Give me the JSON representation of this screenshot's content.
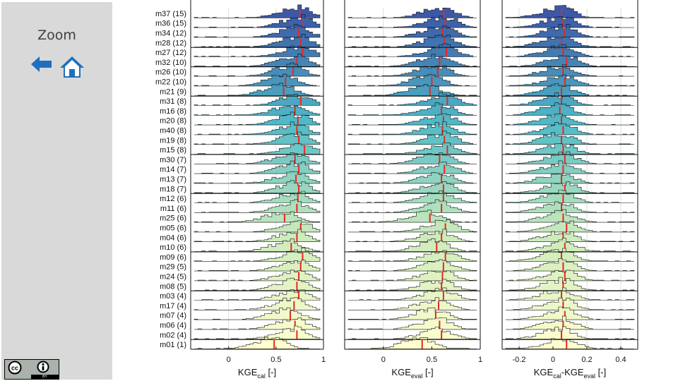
{
  "sidebar": {
    "title": "Zoom",
    "back_icon": "arrow-left-icon",
    "home_icon": "home-icon",
    "license_icon": "cc-by-license-icon",
    "license_strip": "BY",
    "accent": "#1f6fbf"
  },
  "chart_data": {
    "type": "histogram-ridgeline",
    "models": [
      "m37 (15)",
      "m36 (15)",
      "m34 (12)",
      "m28 (12)",
      "m27 (12)",
      "m32 (10)",
      "m26 (10)",
      "m22 (10)",
      "m21 (9)",
      "m31 (8)",
      "m16 (8)",
      "m20 (8)",
      "m40 (8)",
      "m19 (8)",
      "m15 (8)",
      "m30 (7)",
      "m14 (7)",
      "m13 (7)",
      "m18 (7)",
      "m12 (6)",
      "m11 (6)",
      "m25 (6)",
      "m05 (6)",
      "m04 (6)",
      "m10 (6)",
      "m09 (6)",
      "m29 (5)",
      "m24 (5)",
      "m08 (5)",
      "m03 (4)",
      "m17 (4)",
      "m07 (4)",
      "m06 (4)",
      "m02 (4)",
      "m01 (1)"
    ],
    "group_separators_after": [
      "m28 (12)",
      "m32 (10)",
      "m21 (9)",
      "m15 (8)",
      "m18 (7)",
      "m10 (6)",
      "m08 (5)",
      "m02 (4)"
    ],
    "colors": {
      "top": "#2b4aa0",
      "mid": "#41b6c4",
      "low": "#c7e9b4",
      "bottom": "#ffffcc",
      "median": "#e8281e"
    },
    "panels": [
      {
        "xlabel_main": "KGE",
        "xlabel_sub": "cal",
        "xlabel_unit": " [-]",
        "xlim": [
          -0.4,
          1.0
        ],
        "ticks": [
          0,
          0.5,
          1
        ],
        "tick_labels": [
          "0",
          "0.5",
          "1"
        ],
        "median": [
          0.75,
          0.77,
          0.74,
          0.76,
          0.78,
          0.72,
          0.68,
          0.6,
          0.58,
          0.76,
          0.7,
          0.73,
          0.72,
          0.74,
          0.8,
          0.7,
          0.74,
          0.71,
          0.74,
          0.73,
          0.72,
          0.59,
          0.76,
          0.72,
          0.66,
          0.78,
          0.76,
          0.74,
          0.72,
          0.74,
          0.69,
          0.65,
          0.7,
          0.72,
          0.48
        ]
      },
      {
        "xlabel_main": "KGE",
        "xlabel_sub": "eval",
        "xlabel_unit": " [-]",
        "xlim": [
          -0.4,
          1.0
        ],
        "ticks": [
          0,
          0.5,
          1
        ],
        "tick_labels": [
          "0",
          "0.5",
          "1"
        ],
        "median": [
          0.62,
          0.64,
          0.61,
          0.63,
          0.65,
          0.58,
          0.56,
          0.5,
          0.48,
          0.66,
          0.6,
          0.62,
          0.61,
          0.63,
          0.66,
          0.58,
          0.63,
          0.6,
          0.62,
          0.62,
          0.6,
          0.48,
          0.64,
          0.6,
          0.55,
          0.64,
          0.62,
          0.61,
          0.6,
          0.62,
          0.57,
          0.54,
          0.58,
          0.6,
          0.4
        ]
      },
      {
        "xlabel_main": "KGE",
        "xlabel_sub": "cal",
        "xlabel_mid": "-KGE",
        "xlabel_sub2": "eval",
        "xlabel_unit": " [-]",
        "xlim": [
          -0.3,
          0.5
        ],
        "ticks": [
          -0.2,
          0,
          0.2,
          0.4
        ],
        "tick_labels": [
          "-0.2",
          "0",
          "0.2",
          "0.4"
        ],
        "median": [
          0.05,
          0.06,
          0.07,
          0.05,
          0.06,
          0.08,
          0.06,
          0.07,
          0.05,
          0.05,
          0.04,
          0.05,
          0.06,
          0.05,
          0.06,
          0.07,
          0.06,
          0.05,
          0.07,
          0.06,
          0.05,
          0.06,
          0.08,
          0.06,
          0.07,
          0.05,
          0.06,
          0.07,
          0.06,
          0.05,
          0.06,
          0.07,
          0.06,
          0.05,
          0.08
        ]
      }
    ],
    "grid": true,
    "legend": "none"
  }
}
